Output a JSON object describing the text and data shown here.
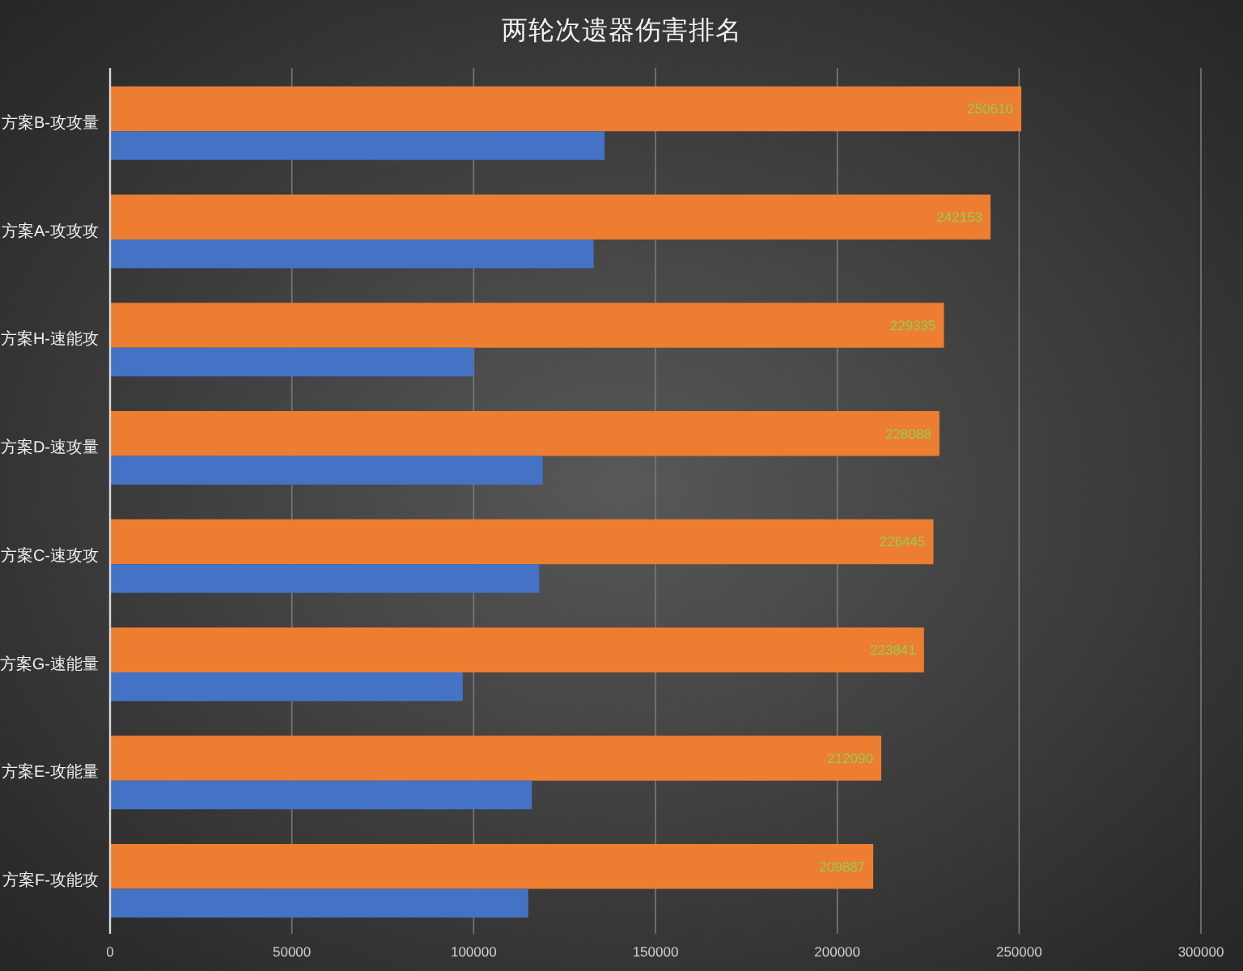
{
  "chart_data": {
    "type": "bar",
    "orientation": "horizontal",
    "title": "两轮次遗器伤害排名",
    "categories": [
      "方案B-攻攻量",
      "方案A-攻攻攻",
      "方案H-速能攻",
      "方案D-速攻量",
      "方案C-速攻攻",
      "方案G-速能量",
      "方案E-攻能量",
      "方案F-攻能攻"
    ],
    "series": [
      {
        "color": "#ed7d31",
        "values": [
          250610,
          242153,
          229335,
          228088,
          226445,
          223841,
          212090,
          209887
        ],
        "value_labels": [
          "250610",
          "242153",
          "229335",
          "228088",
          "226445",
          "223841",
          "212090",
          "209887"
        ]
      },
      {
        "color": "#4472c4",
        "values": [
          136000,
          133000,
          100000,
          119000,
          118000,
          97000,
          116000,
          115000
        ]
      }
    ],
    "xlim": [
      0,
      300000
    ],
    "xticks": [
      0,
      50000,
      100000,
      150000,
      200000,
      250000,
      300000
    ],
    "grid": "x"
  }
}
